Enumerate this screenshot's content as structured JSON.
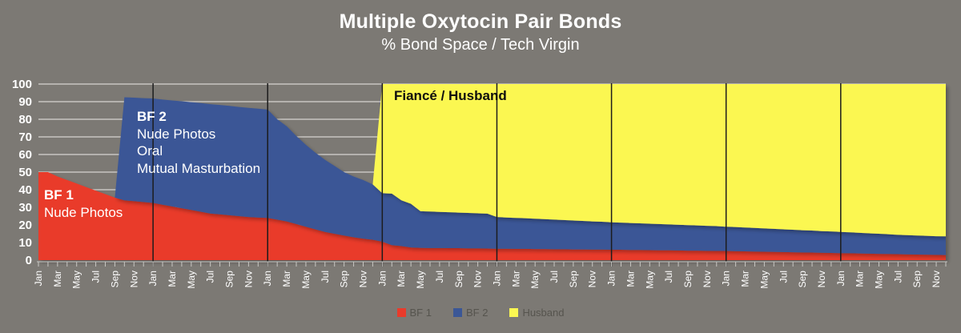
{
  "title": "Multiple Oxytocin Pair Bonds",
  "subtitle": "% Bond Space / Tech Virgin",
  "colors": {
    "background": "#7c7974",
    "gridline": "#e8e6e2",
    "axis_text": "#ffffff",
    "legend_text": "#56544e",
    "event_line": "#1c1c1c",
    "tick": "#c9c7c3"
  },
  "chart_data": {
    "type": "area",
    "stacked": true,
    "title": "Multiple Oxytocin Pair Bonds",
    "subtitle": "% Bond Space / Tech Virgin",
    "xlabel": "",
    "ylabel": "",
    "ylim": [
      0,
      100
    ],
    "y_tick_step": 10,
    "grid": true,
    "x_months_total": 96,
    "x_years": 8,
    "x_tick_label_cycle": [
      "Jan",
      "Mar",
      "May",
      "Jul",
      "Sep",
      "Nov"
    ],
    "event_lines_at_months": [
      12,
      24,
      36,
      48,
      60,
      72,
      84
    ],
    "legend_position": "bottom",
    "series": [
      {
        "name": "BF 1",
        "color": "#e93b2b",
        "values": [
          50,
          50,
          47.5,
          45.5,
          43.5,
          41.5,
          39.5,
          37.5,
          35.5,
          34,
          33.5,
          33,
          32.5,
          31.5,
          30.5,
          29.5,
          28.5,
          27.5,
          26.5,
          26,
          25.5,
          25,
          24.5,
          24.2,
          24,
          23,
          22,
          20.5,
          19,
          17.5,
          16,
          15,
          14,
          13,
          12.2,
          11.6,
          10.5,
          8.5,
          8,
          7.2,
          7,
          6.9,
          6.9,
          6.8,
          6.8,
          6.7,
          6.7,
          6.6,
          6.5,
          6.5,
          6.4,
          6.4,
          6.3,
          6.3,
          6.2,
          6.2,
          6.1,
          6.1,
          6,
          6,
          5.9,
          5.9,
          5.8,
          5.8,
          5.7,
          5.6,
          5.6,
          5.5,
          5.4,
          5.4,
          5.3,
          5.2,
          5.2,
          5.1,
          5,
          4.9,
          4.8,
          4.7,
          4.6,
          4.5,
          4.4,
          4.3,
          4.2,
          4.1,
          4,
          3.9,
          3.8,
          3.7,
          3.6,
          3.5,
          3.4,
          3.3,
          3.2,
          3.1,
          3,
          2.9
        ]
      },
      {
        "name": "BF 2",
        "color": "#3b5796",
        "values": [
          0,
          0,
          0,
          0,
          0,
          0,
          0,
          0,
          0,
          58.5,
          58.8,
          59,
          59.3,
          59.7,
          60.2,
          60.7,
          61.2,
          61.7,
          62.1,
          62.1,
          62.1,
          62,
          62,
          61.8,
          61.5,
          57,
          54,
          50,
          46.5,
          43.5,
          41,
          38.5,
          36,
          34.5,
          33.3,
          31.4,
          27.5,
          29.3,
          26,
          24.8,
          20.8,
          20.7,
          20.5,
          20.4,
          20.2,
          20.1,
          19.9,
          19.8,
          18,
          17.7,
          17.6,
          17.4,
          17.2,
          17,
          16.8,
          16.6,
          16.4,
          16.2,
          16,
          15.8,
          15.6,
          15.4,
          15.3,
          15.1,
          15,
          14.9,
          14.7,
          14.6,
          14.5,
          14.3,
          14.2,
          14.1,
          13.8,
          13.7,
          13.5,
          13.4,
          13.2,
          13.1,
          12.9,
          12.8,
          12.6,
          12.5,
          12.3,
          12.2,
          12,
          11.9,
          11.7,
          11.5,
          11.4,
          11.2,
          11,
          10.9,
          10.8,
          10.7,
          10.6,
          10.6
        ]
      },
      {
        "name": "Husband",
        "color": "#fbf751",
        "values": [
          0,
          0,
          0,
          0,
          0,
          0,
          0,
          0,
          0,
          0,
          0,
          0,
          0,
          0,
          0,
          0,
          0,
          0,
          0,
          0,
          0,
          0,
          0,
          0,
          0,
          0,
          0,
          0,
          0,
          0,
          0,
          0,
          0,
          0,
          0,
          0,
          62,
          62.2,
          66,
          68,
          72.2,
          72.4,
          72.6,
          72.8,
          73,
          73.2,
          73.4,
          73.6,
          75.5,
          75.8,
          76,
          76.2,
          76.5,
          76.7,
          77,
          77.2,
          77.5,
          77.7,
          78,
          78.2,
          78.5,
          78.7,
          78.9,
          79.1,
          79.3,
          79.5,
          79.7,
          79.9,
          80.1,
          80.3,
          80.5,
          80.7,
          81,
          81.2,
          81.5,
          81.7,
          82,
          82.2,
          82.5,
          82.7,
          83,
          83.2,
          83.5,
          83.7,
          84,
          84.2,
          84.5,
          84.8,
          85,
          85.3,
          85.6,
          85.8,
          86,
          86.2,
          86.4,
          86.5
        ]
      }
    ],
    "annotations": {
      "bf1_title": "BF 1",
      "bf1_line1": "Nude Photos",
      "bf2_title": "BF 2",
      "bf2_line1": "Nude Photos",
      "bf2_line2": "Oral",
      "bf2_line3": "Mutual Masturbation",
      "husband_label": "Fiancé / Husband"
    }
  }
}
